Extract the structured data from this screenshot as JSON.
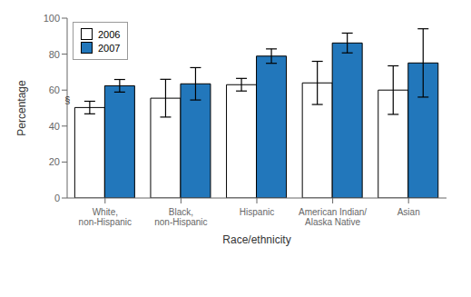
{
  "chart_data": {
    "type": "bar",
    "categories": [
      "White,\nnon-Hispanic",
      "Black,\nnon-Hispanic",
      "Hispanic",
      "American Indian/\nAlaska Native",
      "Asian"
    ],
    "series": [
      {
        "name": "2006",
        "color": "#ffffff",
        "values": [
          50.3,
          55.5,
          63.0,
          64.0,
          60.0
        ],
        "error_low": [
          3.5,
          10.5,
          3.5,
          12.0,
          13.5
        ],
        "error_high": [
          3.5,
          10.5,
          3.5,
          12.0,
          13.5
        ]
      },
      {
        "name": "2007",
        "color": "#2277BB",
        "values": [
          62.4,
          63.5,
          78.9,
          86.2,
          75.1
        ],
        "error_low": [
          3.5,
          9.0,
          4.0,
          5.5,
          19.0
        ],
        "error_high": [
          3.5,
          9.0,
          4.0,
          5.5,
          19.0
        ]
      }
    ],
    "xlabel": "Race/ethnicity",
    "ylabel": "Percentage",
    "ylim": [
      0,
      100
    ],
    "yticks": [
      0,
      20,
      40,
      60,
      80,
      100
    ],
    "legend": "upper left",
    "grid": false,
    "annotations": [
      {
        "text": "§",
        "category": "White,\nnon-Hispanic",
        "series": "2006"
      }
    ]
  }
}
